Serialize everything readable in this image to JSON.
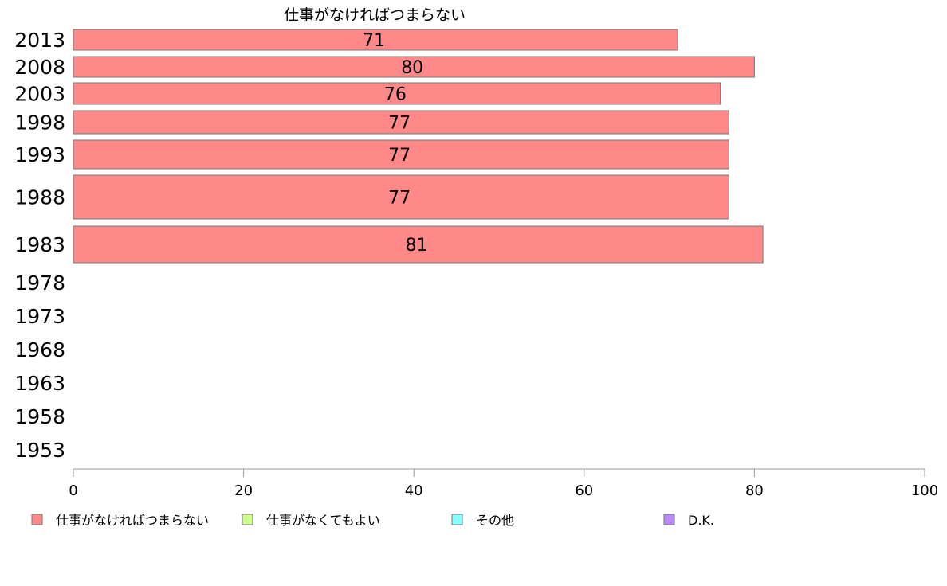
{
  "chart_data": {
    "type": "bar",
    "orientation": "horizontal",
    "title": "仕事がなければつまらない",
    "categories": [
      "2013",
      "2008",
      "2003",
      "1998",
      "1993",
      "1988",
      "1983",
      "1978",
      "1973",
      "1968",
      "1963",
      "1958",
      "1953"
    ],
    "series": [
      {
        "name": "仕事がなければつまらない",
        "color": "#ff8888",
        "values": [
          71,
          80,
          76,
          77,
          77,
          77,
          81,
          null,
          null,
          null,
          null,
          null,
          null
        ],
        "labels": [
          "71",
          "80",
          "76",
          "77",
          "77",
          "77",
          "81",
          "",
          "",
          "",
          "",
          "",
          ""
        ]
      }
    ],
    "xlim": [
      0,
      100
    ],
    "xticks": [
      "0",
      "20",
      "40",
      "60",
      "80",
      "100"
    ],
    "grid": false,
    "legend_placement": "bottom",
    "legend": [
      {
        "label": "仕事がなければつまらない",
        "color": "#ff8888"
      },
      {
        "label": "仕事がなくてもよい",
        "color": "#ccff88"
      },
      {
        "label": "その他",
        "color": "#88ffff"
      },
      {
        "label": "D.K.",
        "color": "#bb88ff"
      }
    ]
  }
}
